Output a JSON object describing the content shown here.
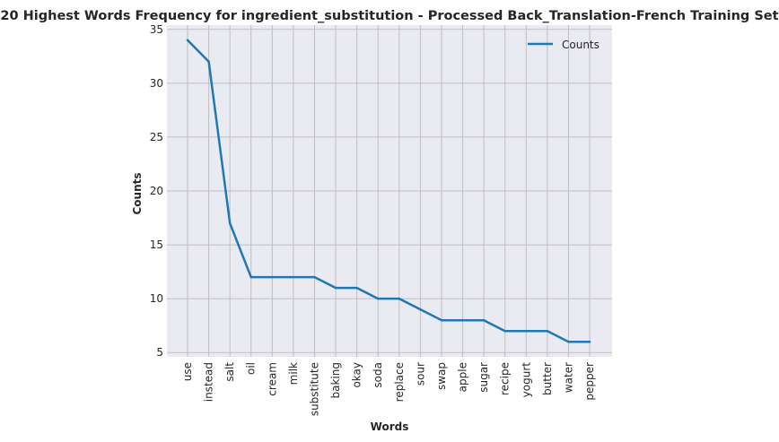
{
  "chart_data": {
    "type": "line",
    "title": "20 Highest Words Frequency for ingredient_substitution - Processed Back_Translation-French Training Set",
    "xlabel": "Words",
    "ylabel": "Counts",
    "categories": [
      "use",
      "instead",
      "salt",
      "oil",
      "cream",
      "milk",
      "substitute",
      "baking",
      "okay",
      "soda",
      "replace",
      "sour",
      "swap",
      "apple",
      "sugar",
      "recipe",
      "yogurt",
      "butter",
      "water",
      "pepper"
    ],
    "series": [
      {
        "name": "Counts",
        "values": [
          34,
          32,
          17,
          12,
          12,
          12,
          12,
          11,
          11,
          10,
          10,
          9,
          8,
          8,
          8,
          7,
          7,
          7,
          6,
          6
        ],
        "color": "#1f77b4"
      }
    ],
    "ylim": [
      4.6,
      35.4
    ],
    "yticks": [
      5,
      10,
      15,
      20,
      25,
      30,
      35
    ],
    "grid": true,
    "legend_position": "top-right",
    "background": "#eaeaf2",
    "grid_color": "#bfbfbf"
  }
}
